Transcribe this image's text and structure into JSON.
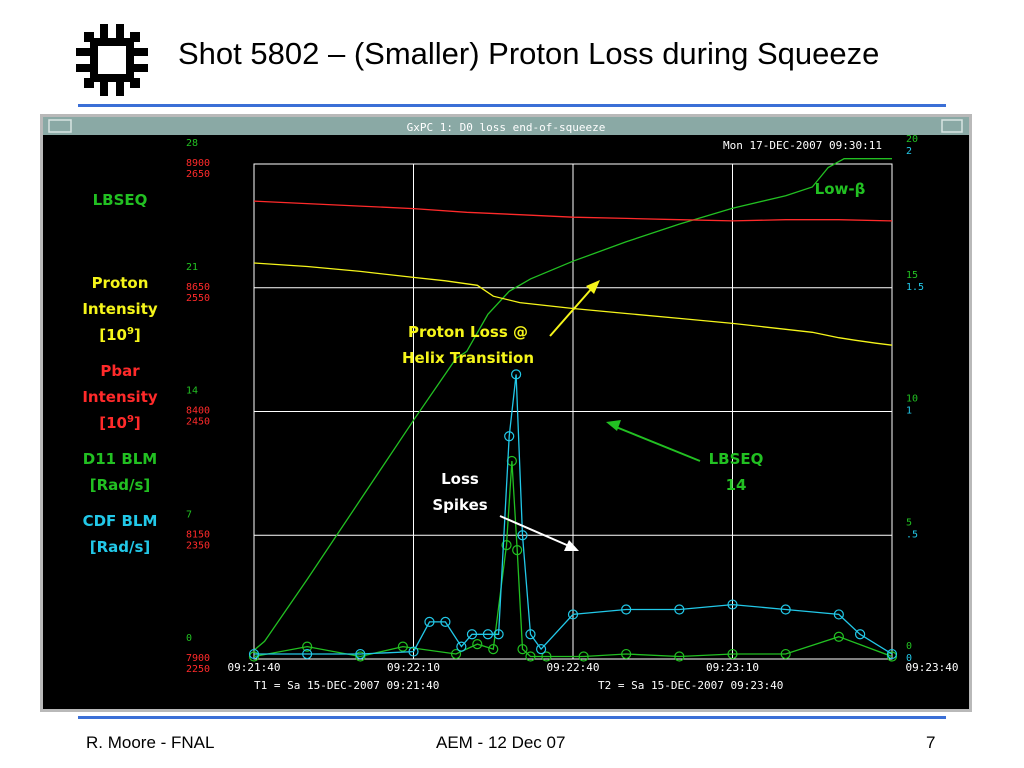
{
  "slide": {
    "title": "Shot 5802 – (Smaller) Proton Loss during Squeeze",
    "footer_left": "R. Moore - FNAL",
    "footer_center": "AEM - 12 Dec 07",
    "footer_right": "7"
  },
  "window": {
    "title": "GxPC 1: D0 loss end-of-squeeze",
    "timestamp": "Mon 17-DEC-2007 09:30:11"
  },
  "colors": {
    "lbseq": "#22c022",
    "proton": "#f5f51a",
    "pbar": "#ff2a2a",
    "d11": "#22c022",
    "cdf": "#22c8e8",
    "grid": "#ffffff",
    "window_bg": "#000000",
    "frame": "#b9b9b9",
    "titlebar": "#8aa9a5"
  },
  "chart_data": {
    "type": "line",
    "x_ticks": [
      "09:21:40",
      "09:22:10",
      "09:22:40",
      "09:23:10",
      "09:23:40"
    ],
    "xlim": [
      "09:21:40",
      "09:23:40"
    ],
    "t1_label": "T1 = Sa 15-DEC-2007 09:21:40",
    "t2_label": "T2 = Sa 15-DEC-2007 09:23:40",
    "left_axes": [
      {
        "name": "LBSEQ",
        "color": "#22c022",
        "ticks": [
          "0",
          "7",
          "14",
          "21",
          "28"
        ],
        "range": [
          0,
          28
        ]
      },
      {
        "name": "Proton Intensity",
        "color": "#ff2a2a",
        "ticks": [
          "7900",
          "8150",
          "8400",
          "8650",
          "8900"
        ],
        "range": [
          7900,
          8900
        ]
      },
      {
        "name": "Pbar Intensity",
        "color": "#ff2a2a",
        "ticks": [
          "2250",
          "2350",
          "2450",
          "2550",
          "2650"
        ],
        "range": [
          2250,
          2650
        ]
      }
    ],
    "right_axes": [
      {
        "name": "D11 BLM",
        "color": "#22c022",
        "ticks": [
          "0",
          "5",
          "10",
          "15",
          "20"
        ],
        "range": [
          0,
          20
        ]
      },
      {
        "name": "CDF BLM",
        "color": "#22c8e8",
        "ticks": [
          "0",
          ".5",
          "1",
          "1.5",
          "2"
        ],
        "range": [
          0,
          2
        ]
      }
    ],
    "legend": [
      {
        "label": "LBSEQ",
        "color": "#22c022"
      },
      {
        "label": "Proton",
        "label2": "Intensity",
        "unit": "[10",
        "exp": "9",
        "unit_end": "]",
        "color": "#f5f51a"
      },
      {
        "label": "Pbar",
        "label2": "Intensity",
        "unit": "[10",
        "exp": "9",
        "unit_end": "]",
        "color": "#ff2a2a"
      },
      {
        "label": "D11 BLM",
        "unit": "[Rad/s]",
        "color": "#22c022"
      },
      {
        "label": "CDF BLM",
        "unit": "[Rad/s]",
        "color": "#22c8e8"
      }
    ],
    "annotations": {
      "low_beta": "Low-β",
      "proton_loss_1": "Proton Loss @",
      "proton_loss_2": "Helix Transition",
      "lbseq_1": "LBSEQ",
      "lbseq_2": "14",
      "loss_1": "Loss",
      "loss_2": "Spikes"
    },
    "series": [
      {
        "name": "LBSEQ",
        "color": "#22c022",
        "axis": 0,
        "x": [
          0,
          2,
          10,
          20,
          30,
          38,
          40,
          44,
          48,
          52,
          60,
          70,
          80,
          90,
          100,
          105,
          108,
          111,
          120
        ],
        "values": [
          0.5,
          1,
          4.5,
          9,
          13.5,
          17,
          17.4,
          19.5,
          20.8,
          21.5,
          22.5,
          23.6,
          24.6,
          25.5,
          26.2,
          26.7,
          27.8,
          28.3,
          28.3
        ]
      },
      {
        "name": "Proton Intensity",
        "color": "#f5f51a",
        "axis": 1,
        "x": [
          0,
          10,
          20,
          30,
          36,
          42,
          45,
          50,
          60,
          70,
          80,
          90,
          100,
          105,
          110,
          113,
          117,
          120
        ],
        "values": [
          8700,
          8693,
          8683,
          8671,
          8664,
          8655,
          8633,
          8620,
          8608,
          8598,
          8588,
          8578,
          8566,
          8560,
          8549,
          8544,
          8538,
          8534
        ]
      },
      {
        "name": "Pbar Intensity",
        "color": "#ff2a2a",
        "axis": 2,
        "x": [
          0,
          10,
          20,
          30,
          40,
          50,
          60,
          70,
          80,
          90,
          100,
          110,
          120
        ],
        "values": [
          2620,
          2618,
          2616,
          2614,
          2611,
          2609,
          2607,
          2606,
          2605,
          2604,
          2605,
          2605,
          2604
        ]
      },
      {
        "name": "D11 BLM",
        "color": "#22c022",
        "axis": 3,
        "marker": "circle",
        "x": [
          0,
          10,
          20,
          28,
          38,
          42,
          45,
          47.5,
          48.5,
          49.5,
          50.5,
          52,
          55,
          62,
          70,
          80,
          90,
          100,
          110,
          120
        ],
        "values": [
          0.1,
          0.5,
          0.1,
          0.5,
          0.2,
          0.6,
          0.4,
          4.6,
          8.0,
          4.4,
          0.4,
          0.1,
          0.1,
          0.1,
          0.2,
          0.1,
          0.2,
          0.2,
          0.9,
          0.1
        ]
      },
      {
        "name": "CDF BLM",
        "color": "#22c8e8",
        "axis": 4,
        "marker": "circle",
        "x": [
          0,
          10,
          20,
          30,
          33,
          36,
          39,
          41,
          44,
          46,
          48,
          49.3,
          50.5,
          52,
          54,
          60,
          70,
          80,
          90,
          100,
          110,
          114,
          120
        ],
        "values": [
          0.02,
          0.02,
          0.02,
          0.03,
          0.15,
          0.15,
          0.05,
          0.1,
          0.1,
          0.1,
          0.9,
          1.15,
          0.5,
          0.1,
          0.04,
          0.18,
          0.2,
          0.2,
          0.22,
          0.2,
          0.18,
          0.1,
          0.02
        ]
      }
    ]
  }
}
